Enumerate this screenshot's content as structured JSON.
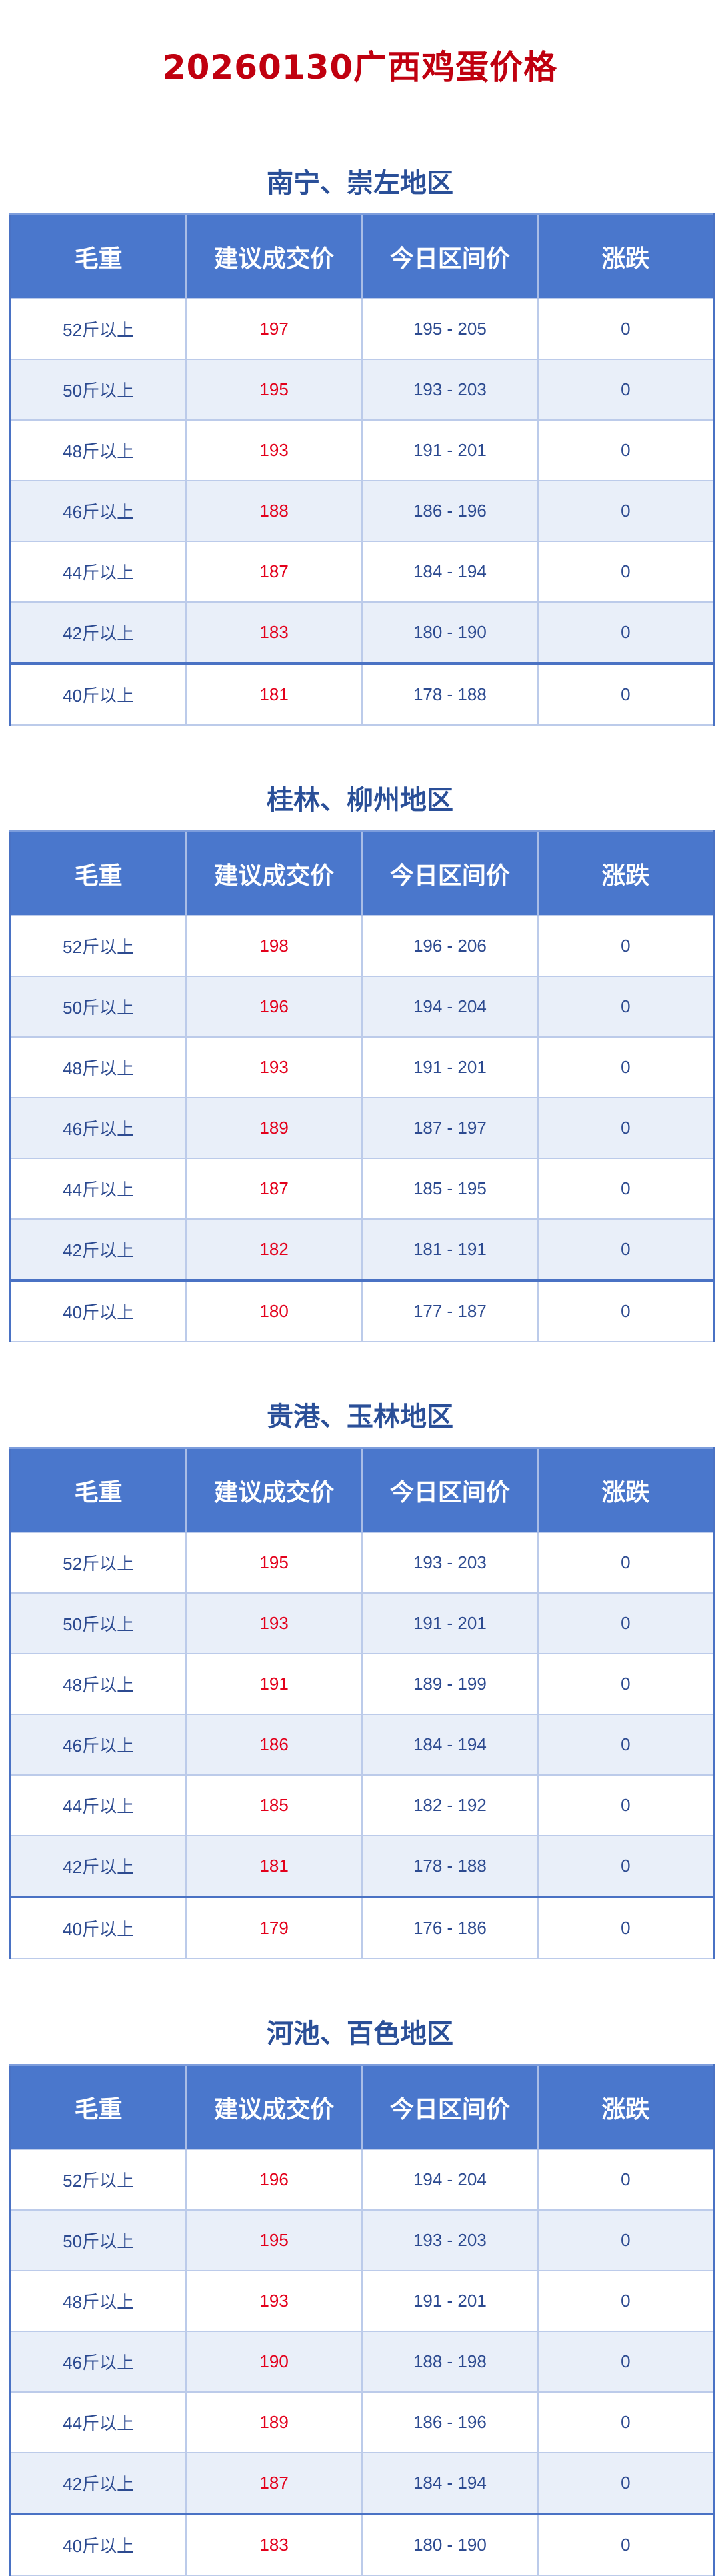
{
  "title": "20260130广西鸡蛋价格",
  "headers": [
    "毛重",
    "建议成交价",
    "今日区间价",
    "涨跌"
  ],
  "colors": {
    "title": "#c0000f",
    "header_bg": "#4a77cc",
    "section_title": "#2a4f98",
    "price": "#e3001b",
    "alt_row": "#e9eff9"
  },
  "sections": [
    {
      "title": "南宁、崇左地区",
      "rows": [
        [
          "52斤以上",
          "197",
          "195 - 205",
          "0"
        ],
        [
          "50斤以上",
          "195",
          "193 - 203",
          "0"
        ],
        [
          "48斤以上",
          "193",
          "191 - 201",
          "0"
        ],
        [
          "46斤以上",
          "188",
          "186 - 196",
          "0"
        ],
        [
          "44斤以上",
          "187",
          "184 - 194",
          "0"
        ],
        [
          "42斤以上",
          "183",
          "180 - 190",
          "0"
        ],
        [
          "40斤以上",
          "181",
          "178 - 188",
          "0"
        ]
      ]
    },
    {
      "title": "桂林、柳州地区",
      "rows": [
        [
          "52斤以上",
          "198",
          "196 - 206",
          "0"
        ],
        [
          "50斤以上",
          "196",
          "194 - 204",
          "0"
        ],
        [
          "48斤以上",
          "193",
          "191 - 201",
          "0"
        ],
        [
          "46斤以上",
          "189",
          "187 - 197",
          "0"
        ],
        [
          "44斤以上",
          "187",
          "185 - 195",
          "0"
        ],
        [
          "42斤以上",
          "182",
          "181 - 191",
          "0"
        ],
        [
          "40斤以上",
          "180",
          "177 - 187",
          "0"
        ]
      ]
    },
    {
      "title": "贵港、玉林地区",
      "rows": [
        [
          "52斤以上",
          "195",
          "193 - 203",
          "0"
        ],
        [
          "50斤以上",
          "193",
          "191 - 201",
          "0"
        ],
        [
          "48斤以上",
          "191",
          "189 - 199",
          "0"
        ],
        [
          "46斤以上",
          "186",
          "184 - 194",
          "0"
        ],
        [
          "44斤以上",
          "185",
          "182 - 192",
          "0"
        ],
        [
          "42斤以上",
          "181",
          "178 - 188",
          "0"
        ],
        [
          "40斤以上",
          "179",
          "176 - 186",
          "0"
        ]
      ]
    },
    {
      "title": "河池、百色地区",
      "rows": [
        [
          "52斤以上",
          "196",
          "194 - 204",
          "0"
        ],
        [
          "50斤以上",
          "195",
          "193 - 203",
          "0"
        ],
        [
          "48斤以上",
          "193",
          "191 - 201",
          "0"
        ],
        [
          "46斤以上",
          "190",
          "188 - 198",
          "0"
        ],
        [
          "44斤以上",
          "189",
          "186 - 196",
          "0"
        ],
        [
          "42斤以上",
          "187",
          "184 - 194",
          "0"
        ],
        [
          "40斤以上",
          "183",
          "180 - 190",
          "0"
        ]
      ]
    }
  ]
}
